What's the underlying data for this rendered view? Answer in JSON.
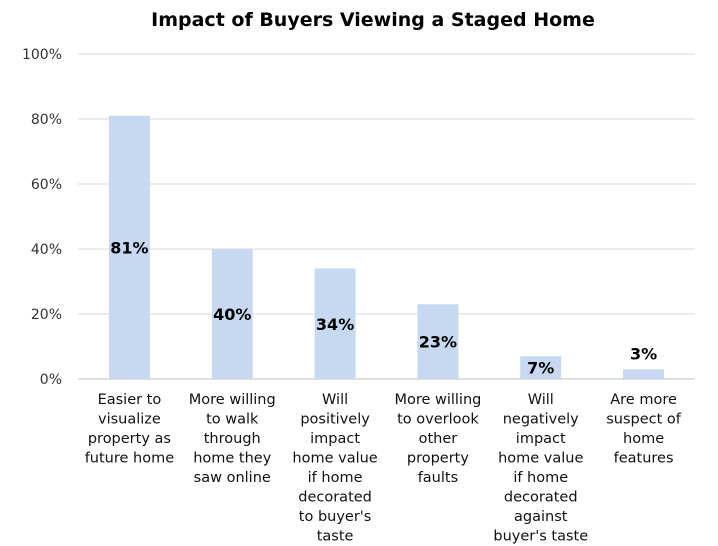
{
  "chart_data": {
    "type": "bar",
    "title": "Impact of Buyers Viewing a Staged Home",
    "categories": [
      [
        "Easier to",
        "visualize",
        "property as",
        "future home"
      ],
      [
        "More willing",
        "to walk",
        "through",
        "home they",
        "saw online"
      ],
      [
        "Will",
        "positively",
        "impact",
        "home value",
        "if home",
        "decorated",
        "to buyer's",
        "taste"
      ],
      [
        "More willing",
        "to overlook",
        "other",
        "property",
        "faults"
      ],
      [
        "Will",
        "negatively",
        "impact",
        "home value",
        "if home",
        "decorated",
        "against",
        "buyer's taste"
      ],
      [
        "Are more",
        "suspect of",
        "home",
        "features"
      ]
    ],
    "values": [
      81,
      40,
      34,
      23,
      7,
      3
    ],
    "data_labels": [
      "81%",
      "40%",
      "34%",
      "23%",
      "7%",
      "3%"
    ],
    "yticks": [
      "0%",
      "20%",
      "40%",
      "60%",
      "80%",
      "100%"
    ],
    "ylim": [
      0,
      100
    ],
    "grid": true,
    "bar_color": "#c6d9f1"
  }
}
